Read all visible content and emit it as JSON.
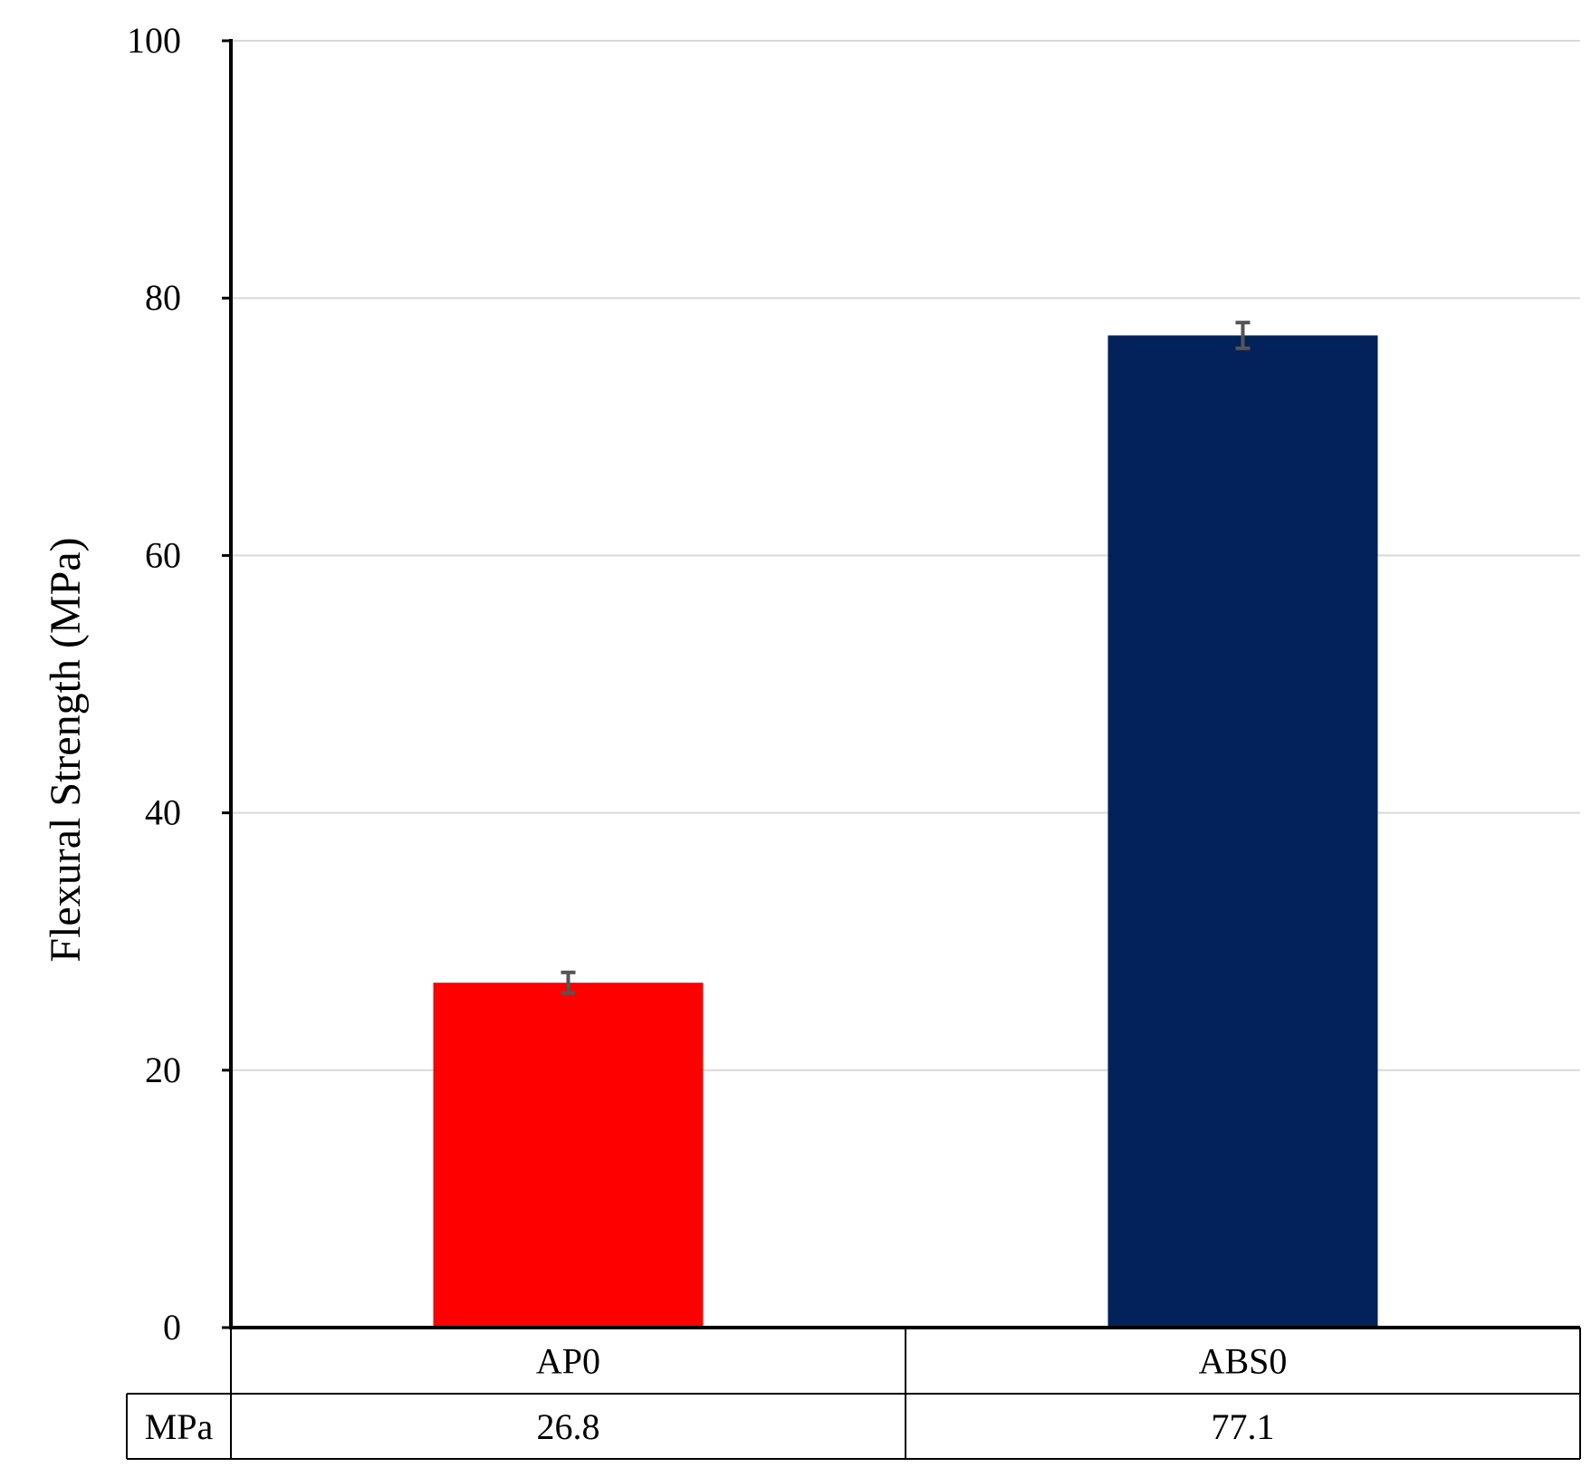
{
  "chart_data": {
    "type": "bar",
    "categories": [
      "AP0",
      "ABS0"
    ],
    "values": [
      26.8,
      77.1
    ],
    "error": [
      0.8,
      1.0
    ],
    "ylabel": "Flexural Strength (MPa)",
    "xlabel": "",
    "ylim": [
      0,
      100
    ],
    "yticks": [
      0,
      20,
      40,
      60,
      80,
      100
    ],
    "grid": true,
    "colors": [
      "#ff0000",
      "#03215b"
    ],
    "error_bar_color": "#555555",
    "data_table": {
      "row_label": "MPa",
      "values": [
        "26.8",
        "77.1"
      ]
    }
  }
}
